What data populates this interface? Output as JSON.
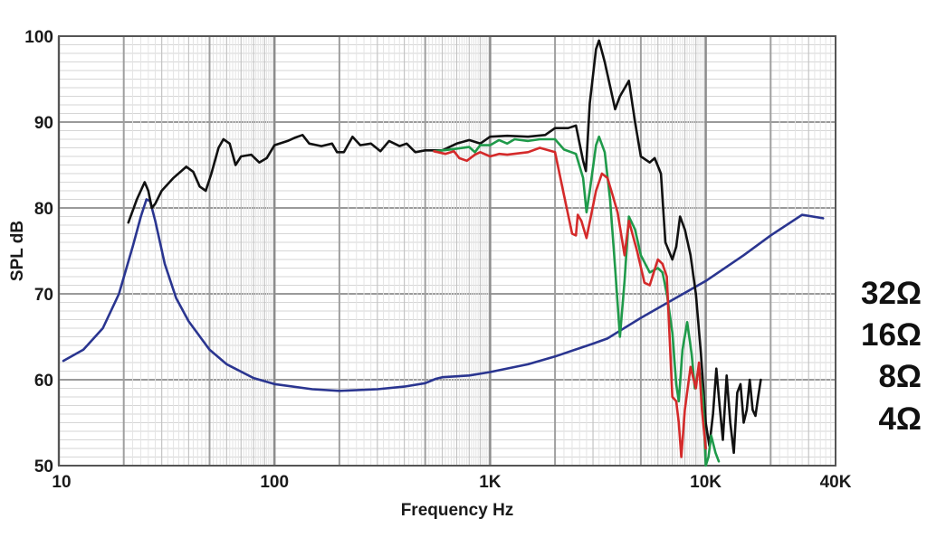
{
  "chart_data": {
    "type": "line",
    "xlabel": "Frequency Hz",
    "ylabel": "SPL dB",
    "xscale": "log",
    "xlim": [
      10,
      40000
    ],
    "ylim": [
      50,
      100
    ],
    "grid": true,
    "x_ticks": [
      {
        "value": 10,
        "label": "10"
      },
      {
        "value": 100,
        "label": "100"
      },
      {
        "value": 1000,
        "label": "1K"
      },
      {
        "value": 10000,
        "label": "10K"
      },
      {
        "value": 40000,
        "label": "40K"
      }
    ],
    "y_ticks": [
      {
        "value": 50,
        "label": "50"
      },
      {
        "value": 60,
        "label": "60"
      },
      {
        "value": 70,
        "label": "70"
      },
      {
        "value": 80,
        "label": "80"
      },
      {
        "value": 90,
        "label": "90"
      },
      {
        "value": 100,
        "label": "100"
      }
    ],
    "impedance_labels": [
      "32Ω",
      "16Ω",
      "8Ω",
      "4Ω"
    ],
    "series": [
      {
        "color": "#2a3590",
        "points": [
          [
            10.5,
            62.2
          ],
          [
            13,
            63.5
          ],
          [
            16,
            66
          ],
          [
            19,
            70
          ],
          [
            22,
            75.5
          ],
          [
            24,
            79
          ],
          [
            25.5,
            81
          ],
          [
            26.5,
            80.8
          ],
          [
            28,
            78.5
          ],
          [
            31,
            73.5
          ],
          [
            35,
            69.5
          ],
          [
            40,
            66.8
          ],
          [
            50,
            63.5
          ],
          [
            60,
            61.8
          ],
          [
            80,
            60.2
          ],
          [
            100,
            59.5
          ],
          [
            150,
            58.9
          ],
          [
            200,
            58.7
          ],
          [
            300,
            58.9
          ],
          [
            400,
            59.2
          ],
          [
            500,
            59.6
          ],
          [
            560,
            60.1
          ],
          [
            600,
            60.3
          ],
          [
            800,
            60.5
          ],
          [
            1000,
            60.9
          ],
          [
            1500,
            61.8
          ],
          [
            2000,
            62.7
          ],
          [
            3000,
            64.2
          ],
          [
            3500,
            64.8
          ],
          [
            4000,
            65.7
          ],
          [
            5000,
            67.2
          ],
          [
            7000,
            69.3
          ],
          [
            10000,
            71.5
          ],
          [
            15000,
            74.5
          ],
          [
            20000,
            76.8
          ],
          [
            28000,
            79.2
          ],
          [
            35000,
            78.8
          ]
        ]
      },
      {
        "color": "#111111",
        "points": [
          [
            21,
            78.3
          ],
          [
            23,
            81
          ],
          [
            25,
            83
          ],
          [
            26,
            82
          ],
          [
            27,
            80
          ],
          [
            28,
            80.5
          ],
          [
            30,
            82
          ],
          [
            34,
            83.5
          ],
          [
            39,
            84.8
          ],
          [
            42,
            84.2
          ],
          [
            45,
            82.5
          ],
          [
            48,
            82
          ],
          [
            51,
            84
          ],
          [
            55,
            87
          ],
          [
            58,
            88
          ],
          [
            62,
            87.5
          ],
          [
            66,
            85
          ],
          [
            70,
            86
          ],
          [
            78,
            86.2
          ],
          [
            85,
            85.3
          ],
          [
            92,
            85.8
          ],
          [
            100,
            87.3
          ],
          [
            115,
            87.8
          ],
          [
            125,
            88.2
          ],
          [
            135,
            88.5
          ],
          [
            145,
            87.5
          ],
          [
            165,
            87.2
          ],
          [
            185,
            87.5
          ],
          [
            195,
            86.5
          ],
          [
            210,
            86.5
          ],
          [
            230,
            88.3
          ],
          [
            250,
            87.3
          ],
          [
            280,
            87.5
          ],
          [
            310,
            86.6
          ],
          [
            340,
            87.8
          ],
          [
            380,
            87.2
          ],
          [
            410,
            87.5
          ],
          [
            450,
            86.5
          ],
          [
            500,
            86.7
          ],
          [
            600,
            86.7
          ],
          [
            700,
            87.5
          ],
          [
            800,
            87.9
          ],
          [
            900,
            87.5
          ],
          [
            1000,
            88.3
          ],
          [
            1200,
            88.4
          ],
          [
            1500,
            88.3
          ],
          [
            1800,
            88.5
          ],
          [
            2000,
            89.3
          ],
          [
            2300,
            89.3
          ],
          [
            2500,
            89.6
          ],
          [
            2700,
            85.5
          ],
          [
            2780,
            84.3
          ],
          [
            2900,
            92.2
          ],
          [
            3100,
            98.5
          ],
          [
            3200,
            99.5
          ],
          [
            3400,
            97
          ],
          [
            3800,
            91.5
          ],
          [
            4000,
            93
          ],
          [
            4400,
            94.8
          ],
          [
            4700,
            90
          ],
          [
            5000,
            86
          ],
          [
            5500,
            85.3
          ],
          [
            5800,
            85.8
          ],
          [
            6200,
            84
          ],
          [
            6500,
            76
          ],
          [
            7000,
            74
          ],
          [
            7300,
            75.5
          ],
          [
            7600,
            79
          ],
          [
            8000,
            77.5
          ],
          [
            8500,
            74.5
          ],
          [
            9000,
            70
          ],
          [
            9500,
            63
          ],
          [
            10000,
            55
          ],
          [
            10400,
            52.3
          ],
          [
            10800,
            56
          ],
          [
            11200,
            61.3
          ],
          [
            11600,
            57
          ],
          [
            12000,
            53
          ],
          [
            12500,
            60.5
          ],
          [
            13000,
            55
          ],
          [
            13500,
            51.5
          ],
          [
            14000,
            58.5
          ],
          [
            14500,
            59.5
          ],
          [
            15000,
            55
          ],
          [
            15500,
            56.5
          ],
          [
            16000,
            60
          ],
          [
            16500,
            56.5
          ],
          [
            17000,
            55.8
          ],
          [
            17500,
            58
          ],
          [
            18000,
            60
          ]
        ]
      },
      {
        "color": "#1f9a4a",
        "points": [
          [
            550,
            86.6
          ],
          [
            650,
            86.8
          ],
          [
            700,
            86.9
          ],
          [
            800,
            87.1
          ],
          [
            850,
            86.5
          ],
          [
            900,
            87.3
          ],
          [
            1000,
            87.3
          ],
          [
            1100,
            87.9
          ],
          [
            1200,
            87.5
          ],
          [
            1300,
            88
          ],
          [
            1500,
            87.8
          ],
          [
            1700,
            88
          ],
          [
            2000,
            88
          ],
          [
            2200,
            86.8
          ],
          [
            2500,
            86.3
          ],
          [
            2700,
            83.5
          ],
          [
            2800,
            79.5
          ],
          [
            2900,
            82
          ],
          [
            3100,
            87.3
          ],
          [
            3200,
            88.3
          ],
          [
            3400,
            86.5
          ],
          [
            3600,
            81
          ],
          [
            3800,
            73
          ],
          [
            4000,
            65
          ],
          [
            4200,
            71.5
          ],
          [
            4400,
            79
          ],
          [
            4700,
            77.5
          ],
          [
            5000,
            74.5
          ],
          [
            5500,
            72.5
          ],
          [
            6000,
            73
          ],
          [
            6300,
            72.5
          ],
          [
            6600,
            70
          ],
          [
            7000,
            65.5
          ],
          [
            7300,
            59.5
          ],
          [
            7500,
            57.5
          ],
          [
            7800,
            63.5
          ],
          [
            8200,
            66.7
          ],
          [
            8600,
            63
          ],
          [
            8900,
            59
          ],
          [
            9300,
            61.5
          ],
          [
            9700,
            58
          ],
          [
            10000,
            50
          ],
          [
            10300,
            51
          ],
          [
            10600,
            53.5
          ],
          [
            11100,
            51.5
          ],
          [
            11500,
            50.5
          ]
        ]
      },
      {
        "color": "#d42a2a",
        "points": [
          [
            550,
            86.6
          ],
          [
            620,
            86.3
          ],
          [
            680,
            86.6
          ],
          [
            720,
            85.8
          ],
          [
            780,
            85.5
          ],
          [
            850,
            86.2
          ],
          [
            900,
            86.5
          ],
          [
            1000,
            86
          ],
          [
            1100,
            86.3
          ],
          [
            1200,
            86.2
          ],
          [
            1500,
            86.5
          ],
          [
            1700,
            87
          ],
          [
            2000,
            86.5
          ],
          [
            2200,
            81.5
          ],
          [
            2400,
            77
          ],
          [
            2500,
            76.8
          ],
          [
            2550,
            79.2
          ],
          [
            2650,
            78.5
          ],
          [
            2800,
            76.5
          ],
          [
            3100,
            82
          ],
          [
            3300,
            84
          ],
          [
            3500,
            83.5
          ],
          [
            3700,
            81.5
          ],
          [
            3900,
            79.5
          ],
          [
            4200,
            74.5
          ],
          [
            4400,
            78.5
          ],
          [
            4800,
            75
          ],
          [
            5200,
            71.3
          ],
          [
            5500,
            71
          ],
          [
            6000,
            74
          ],
          [
            6300,
            73.5
          ],
          [
            6600,
            72
          ],
          [
            7000,
            58
          ],
          [
            7300,
            57.5
          ],
          [
            7500,
            55
          ],
          [
            7700,
            51
          ],
          [
            8000,
            56.5
          ],
          [
            8500,
            61.5
          ],
          [
            9000,
            59
          ],
          [
            9300,
            62
          ],
          [
            9600,
            56.5
          ],
          [
            10000,
            52
          ]
        ]
      }
    ]
  }
}
